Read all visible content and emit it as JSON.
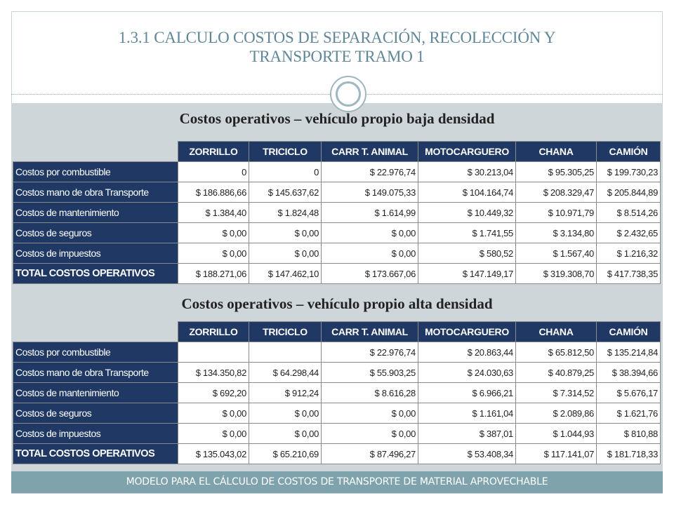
{
  "slide": {
    "title_line1": "1.3.1 CALCULO COSTOS DE SEPARACIÓN, RECOLECCIÓN Y",
    "title_line2": "TRANSPORTE TRAMO 1",
    "footer": "MODELO PARA EL CÁLCULO DE COSTOS DE TRANSPORTE DE MATERIAL APROVECHABLE"
  },
  "columns": [
    "ZORRILLO",
    "TRICICLO",
    "CARR T. ANIMAL",
    "MOTOCARGUERO",
    "CHANA",
    "CAMIÓN"
  ],
  "low_density": {
    "heading": "Costos operativos – vehículo propio baja densidad",
    "rows": [
      {
        "label": "Costos por combustible",
        "values": [
          "0",
          "0",
          "$ 22.976,74",
          "$ 30.213,04",
          "$ 95.305,25",
          "$ 199.730,23"
        ]
      },
      {
        "label": "Costos mano de obra Transporte",
        "values": [
          "$ 186.886,66",
          "$ 145.637,62",
          "$ 149.075,33",
          "$ 104.164,74",
          "$ 208.329,47",
          "$ 205.844,89"
        ]
      },
      {
        "label": "Costos de mantenimiento",
        "values": [
          "$ 1.384,40",
          "$ 1.824,48",
          "$ 1.614,99",
          "$ 10.449,32",
          "$ 10.971,79",
          "$ 8.514,26"
        ]
      },
      {
        "label": "Costos de seguros",
        "values": [
          "$ 0,00",
          "$ 0,00",
          "$ 0,00",
          "$ 1.741,55",
          "$ 3.134,80",
          "$ 2.432,65"
        ]
      },
      {
        "label": "Costos de impuestos",
        "values": [
          "$ 0,00",
          "$ 0,00",
          "$ 0,00",
          "$ 580,52",
          "$ 1.567,40",
          "$ 1.216,32"
        ]
      },
      {
        "label": "TOTAL COSTOS OPERATIVOS",
        "values": [
          "$ 188.271,06",
          "$ 147.462,10",
          "$ 173.667,06",
          "$ 147.149,17",
          "$ 319.308,70",
          "$ 417.738,35"
        ]
      }
    ]
  },
  "high_density": {
    "heading": "Costos operativos – vehículo propio alta densidad",
    "rows": [
      {
        "label": "Costos por combustible",
        "values": [
          "",
          "",
          "$ 22.976,74",
          "$ 20.863,44",
          "$ 65.812,50",
          "$ 135.214,84"
        ]
      },
      {
        "label": "Costos mano de obra Transporte",
        "values": [
          "$ 134.350,82",
          "$ 64.298,44",
          "$ 55.903,25",
          "$ 24.030,63",
          "$ 40.879,25",
          "$ 38.394,66"
        ]
      },
      {
        "label": "Costos de mantenimiento",
        "values": [
          "$ 692,20",
          "$ 912,24",
          "$ 8.616,28",
          "$ 6.966,21",
          "$ 7.314,52",
          "$ 5.676,17"
        ]
      },
      {
        "label": "Costos de seguros",
        "values": [
          "$ 0,00",
          "$ 0,00",
          "$ 0,00",
          "$ 1.161,04",
          "$ 2.089,86",
          "$ 1.621,76"
        ]
      },
      {
        "label": "Costos de impuestos",
        "values": [
          "$ 0,00",
          "$ 0,00",
          "$ 0,00",
          "$ 387,01",
          "$ 1.044,93",
          "$ 810,88"
        ]
      },
      {
        "label": "TOTAL COSTOS OPERATIVOS",
        "values": [
          "$ 135.043,02",
          "$ 65.210,69",
          "$ 87.496,27",
          "$ 53.408,34",
          "$ 117.141,07",
          "$ 181.718,33"
        ]
      }
    ]
  }
}
